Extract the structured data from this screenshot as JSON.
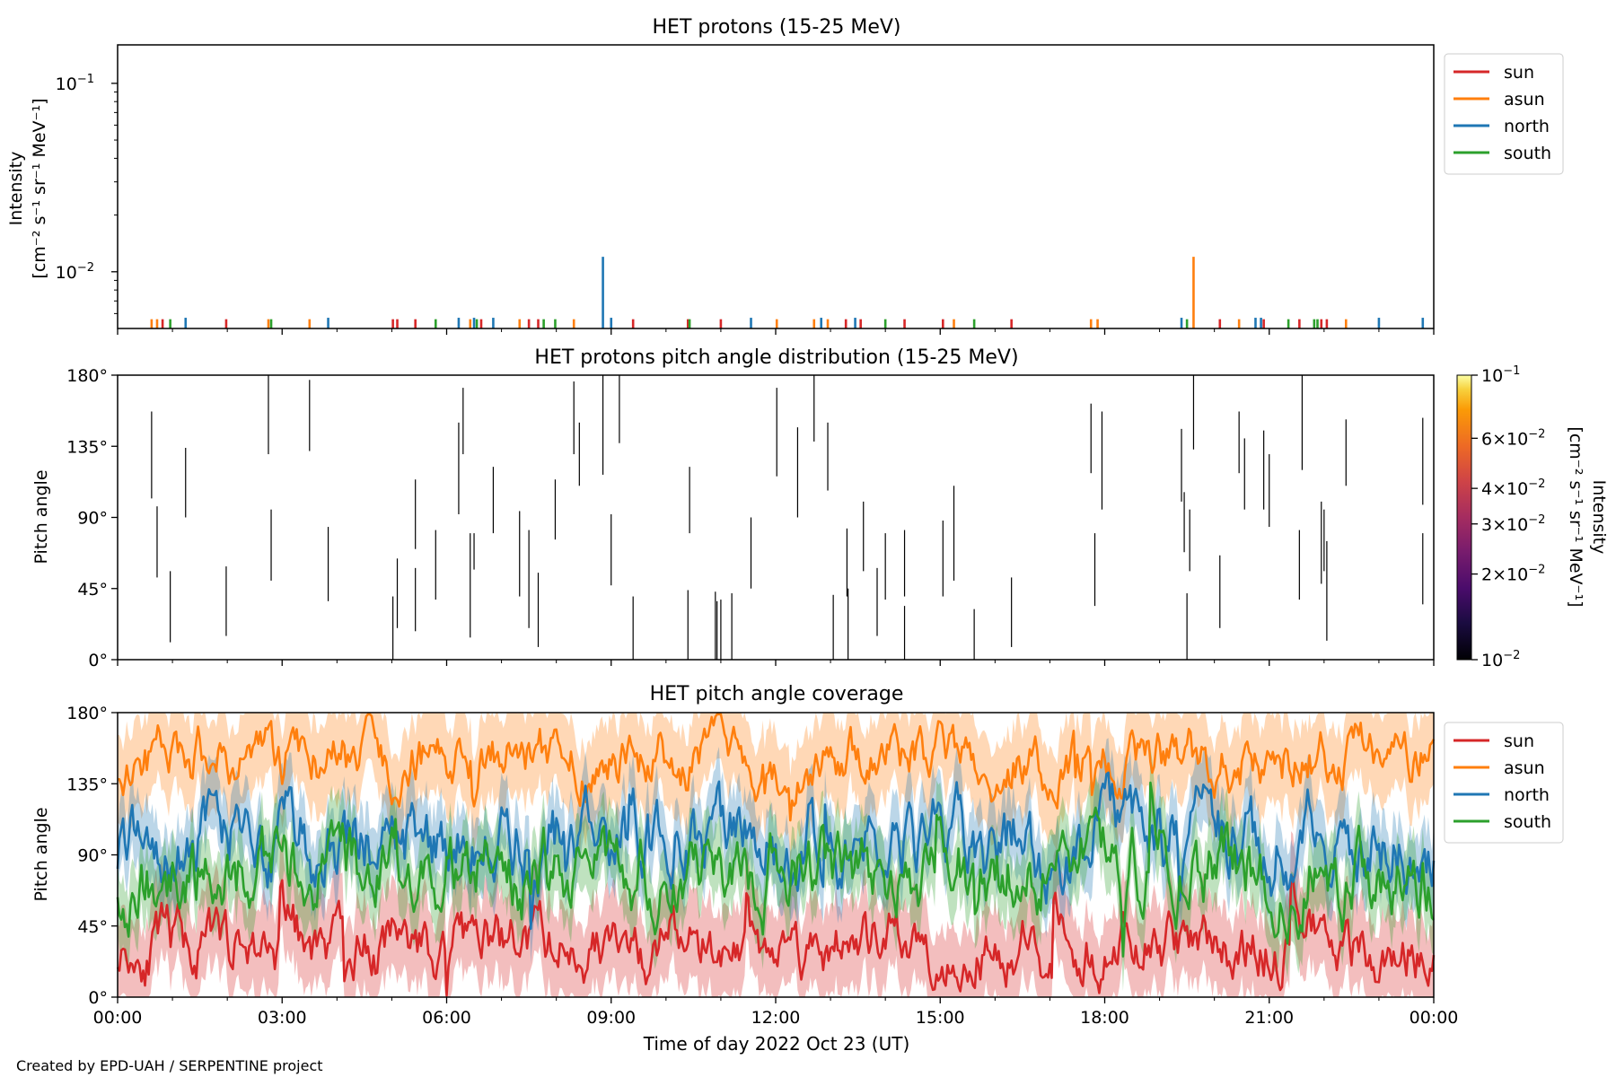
{
  "footer": {
    "credit": "Created by EPD-UAH / SERPENTINE project"
  },
  "xaxis": {
    "label": "Time of day 2022 Oct 23 (UT)",
    "range_hours": [
      0,
      24
    ],
    "ticks": [
      {
        "hour": 0,
        "label": "00:00"
      },
      {
        "hour": 3,
        "label": "03:00"
      },
      {
        "hour": 6,
        "label": "06:00"
      },
      {
        "hour": 9,
        "label": "09:00"
      },
      {
        "hour": 12,
        "label": "12:00"
      },
      {
        "hour": 15,
        "label": "15:00"
      },
      {
        "hour": 18,
        "label": "18:00"
      },
      {
        "hour": 21,
        "label": "21:00"
      },
      {
        "hour": 24,
        "label": "00:00"
      }
    ]
  },
  "chart_data": [
    {
      "type": "line",
      "title": "HET protons (15-25 MeV)",
      "ylabel_line1": "Intensity",
      "ylabel_line2": "[cm⁻² s⁻¹ sr⁻¹ MeV⁻¹]",
      "yscale": "log",
      "ylim": [
        0.005,
        0.16
      ],
      "yticks": [
        {
          "value": 0.01,
          "base": "10",
          "exp": "−2"
        },
        {
          "value": 0.1,
          "base": "10",
          "exp": "−1"
        }
      ],
      "legend": {
        "position": "outside-right-top"
      },
      "series": [
        {
          "name": "sun",
          "color": "#d62728",
          "spikes": [
            [
              0.82,
              0.0056
            ],
            [
              1.98,
              0.0056
            ],
            [
              5.02,
              0.0056
            ],
            [
              5.1,
              0.0056
            ],
            [
              5.43,
              0.0056
            ],
            [
              6.63,
              0.0056
            ],
            [
              7.5,
              0.0056
            ],
            [
              7.67,
              0.0056
            ],
            [
              9.4,
              0.0056
            ],
            [
              10.4,
              0.0056
            ],
            [
              11.0,
              0.0056
            ],
            [
              13.28,
              0.0056
            ],
            [
              13.55,
              0.0056
            ],
            [
              14.35,
              0.0056
            ],
            [
              15.05,
              0.0056
            ],
            [
              16.3,
              0.0056
            ],
            [
              20.1,
              0.0056
            ],
            [
              20.9,
              0.0056
            ],
            [
              21.55,
              0.0056
            ],
            [
              21.95,
              0.0056
            ],
            [
              22.05,
              0.0056
            ]
          ]
        },
        {
          "name": "asun",
          "color": "#ff7f0e",
          "spikes": [
            [
              0.62,
              0.0056
            ],
            [
              0.72,
              0.0056
            ],
            [
              2.75,
              0.0056
            ],
            [
              3.5,
              0.0056
            ],
            [
              6.43,
              0.0056
            ],
            [
              7.33,
              0.0056
            ],
            [
              8.32,
              0.0056
            ],
            [
              12.02,
              0.0056
            ],
            [
              12.7,
              0.0056
            ],
            [
              12.95,
              0.0056
            ],
            [
              15.25,
              0.0056
            ],
            [
              17.75,
              0.0056
            ],
            [
              17.87,
              0.0056
            ],
            [
              19.62,
              0.012
            ],
            [
              20.45,
              0.0056
            ],
            [
              22.4,
              0.0056
            ]
          ]
        },
        {
          "name": "north",
          "color": "#1f77b4",
          "spikes": [
            [
              1.24,
              0.0057
            ],
            [
              3.84,
              0.0057
            ],
            [
              6.22,
              0.0057
            ],
            [
              6.5,
              0.0057
            ],
            [
              6.85,
              0.0057
            ],
            [
              8.85,
              0.012
            ],
            [
              9.0,
              0.0057
            ],
            [
              11.55,
              0.0057
            ],
            [
              12.83,
              0.0057
            ],
            [
              13.45,
              0.0057
            ],
            [
              19.4,
              0.0057
            ],
            [
              20.75,
              0.0057
            ],
            [
              20.85,
              0.0057
            ],
            [
              23.0,
              0.0057
            ],
            [
              23.8,
              0.0057
            ]
          ]
        },
        {
          "name": "south",
          "color": "#2ca02c",
          "spikes": [
            [
              0.96,
              0.0056
            ],
            [
              2.8,
              0.0056
            ],
            [
              5.8,
              0.0056
            ],
            [
              6.55,
              0.0056
            ],
            [
              7.77,
              0.0056
            ],
            [
              7.98,
              0.0056
            ],
            [
              10.43,
              0.0056
            ],
            [
              14.0,
              0.0056
            ],
            [
              15.62,
              0.0056
            ],
            [
              19.5,
              0.0056
            ],
            [
              21.35,
              0.0056
            ],
            [
              21.82,
              0.0056
            ],
            [
              21.88,
              0.0056
            ]
          ]
        }
      ]
    },
    {
      "type": "heatmap",
      "title": "HET protons pitch angle distribution (15-25 MeV)",
      "ylabel": "Pitch angle",
      "ylim": [
        0,
        180
      ],
      "yticks": [
        {
          "value": 0,
          "label": "0°"
        },
        {
          "value": 45,
          "label": "45°"
        },
        {
          "value": 90,
          "label": "90°"
        },
        {
          "value": 135,
          "label": "135°"
        },
        {
          "value": 180,
          "label": "180°"
        }
      ],
      "colorbar": {
        "label_line1": "Intensity",
        "label_line2": "[cm⁻² s⁻¹ sr⁻¹ MeV⁻¹]",
        "scale": "log",
        "range": [
          0.01,
          0.1
        ],
        "colormap": "inferno",
        "ticks": [
          {
            "value": 0.1,
            "base": "10",
            "exp": "−1"
          },
          {
            "value": 0.06,
            "base": "6×10",
            "exp": "−2"
          },
          {
            "value": 0.04,
            "base": "4×10",
            "exp": "−2"
          },
          {
            "value": 0.03,
            "base": "3×10",
            "exp": "−2"
          },
          {
            "value": 0.02,
            "base": "2×10",
            "exp": "−2"
          },
          {
            "value": 0.01,
            "base": "10",
            "exp": "−2"
          }
        ]
      },
      "segments": [
        [
          0.62,
          102,
          157
        ],
        [
          0.72,
          52,
          97
        ],
        [
          0.96,
          11,
          56
        ],
        [
          1.24,
          90,
          134
        ],
        [
          1.98,
          15,
          59
        ],
        [
          2.75,
          130,
          180
        ],
        [
          2.8,
          50,
          95
        ],
        [
          3.5,
          132,
          177
        ],
        [
          3.84,
          37,
          84
        ],
        [
          5.02,
          0,
          40
        ],
        [
          5.1,
          20,
          64
        ],
        [
          5.43,
          70,
          114
        ],
        [
          5.43,
          18,
          58
        ],
        [
          5.8,
          38,
          82
        ],
        [
          6.22,
          92,
          150
        ],
        [
          6.3,
          130,
          172
        ],
        [
          6.43,
          14,
          80
        ],
        [
          6.5,
          57,
          80
        ],
        [
          6.85,
          80,
          122
        ],
        [
          7.33,
          40,
          94
        ],
        [
          7.5,
          20,
          82
        ],
        [
          7.67,
          8,
          55
        ],
        [
          7.98,
          76,
          114
        ],
        [
          8.32,
          130,
          176
        ],
        [
          8.42,
          110,
          150
        ],
        [
          8.85,
          117,
          180
        ],
        [
          9.0,
          47,
          92
        ],
        [
          9.15,
          137,
          180
        ],
        [
          9.4,
          0,
          40
        ],
        [
          10.4,
          0,
          44
        ],
        [
          10.43,
          80,
          122
        ],
        [
          10.9,
          0,
          43
        ],
        [
          10.93,
          0,
          37
        ],
        [
          11.0,
          0,
          38
        ],
        [
          11.2,
          0,
          42
        ],
        [
          11.55,
          45,
          90
        ],
        [
          12.02,
          116,
          172
        ],
        [
          12.4,
          90,
          147
        ],
        [
          12.7,
          138,
          180
        ],
        [
          12.95,
          107,
          150
        ],
        [
          13.05,
          0,
          41
        ],
        [
          13.3,
          40,
          83
        ],
        [
          13.32,
          0,
          45
        ],
        [
          13.6,
          56,
          100
        ],
        [
          13.85,
          15,
          58
        ],
        [
          14.0,
          38,
          80
        ],
        [
          14.35,
          40,
          82
        ],
        [
          14.35,
          0,
          34
        ],
        [
          15.05,
          40,
          88
        ],
        [
          15.25,
          50,
          110
        ],
        [
          15.62,
          0,
          32
        ],
        [
          16.3,
          8,
          52
        ],
        [
          17.75,
          118,
          162
        ],
        [
          17.82,
          34,
          80
        ],
        [
          17.95,
          95,
          157
        ],
        [
          19.4,
          100,
          146
        ],
        [
          19.45,
          68,
          106
        ],
        [
          19.5,
          0,
          42
        ],
        [
          19.55,
          56,
          95
        ],
        [
          19.62,
          133,
          180
        ],
        [
          20.1,
          20,
          66
        ],
        [
          20.45,
          118,
          157
        ],
        [
          20.55,
          95,
          140
        ],
        [
          20.9,
          95,
          145
        ],
        [
          21.0,
          84,
          130
        ],
        [
          21.55,
          38,
          82
        ],
        [
          21.6,
          120,
          180
        ],
        [
          21.95,
          48,
          100
        ],
        [
          22.0,
          56,
          95
        ],
        [
          22.05,
          12,
          75
        ],
        [
          22.4,
          110,
          152
        ],
        [
          23.8,
          35,
          80
        ],
        [
          23.8,
          98,
          153
        ]
      ]
    },
    {
      "type": "line",
      "title": "HET pitch angle coverage",
      "ylabel": "Pitch angle",
      "ylim": [
        0,
        180
      ],
      "yticks": [
        {
          "value": 0,
          "label": "0°"
        },
        {
          "value": 45,
          "label": "45°"
        },
        {
          "value": 90,
          "label": "90°"
        },
        {
          "value": 135,
          "label": "135°"
        },
        {
          "value": 180,
          "label": "180°"
        }
      ],
      "legend": {
        "position": "outside-right-top"
      },
      "series": [
        {
          "name": "sun",
          "color": "#d62728",
          "mean_deg": 32,
          "jitter_deg": 22,
          "band_halfwidth_deg": 28,
          "seed": 11
        },
        {
          "name": "asun",
          "color": "#ff7f0e",
          "mean_deg": 150,
          "jitter_deg": 20,
          "band_halfwidth_deg": 28,
          "seed": 23
        },
        {
          "name": "north",
          "color": "#1f77b4",
          "mean_deg": 98,
          "jitter_deg": 28,
          "band_halfwidth_deg": 22,
          "seed": 37
        },
        {
          "name": "south",
          "color": "#2ca02c",
          "mean_deg": 80,
          "jitter_deg": 28,
          "band_halfwidth_deg": 22,
          "seed": 53
        }
      ]
    }
  ]
}
